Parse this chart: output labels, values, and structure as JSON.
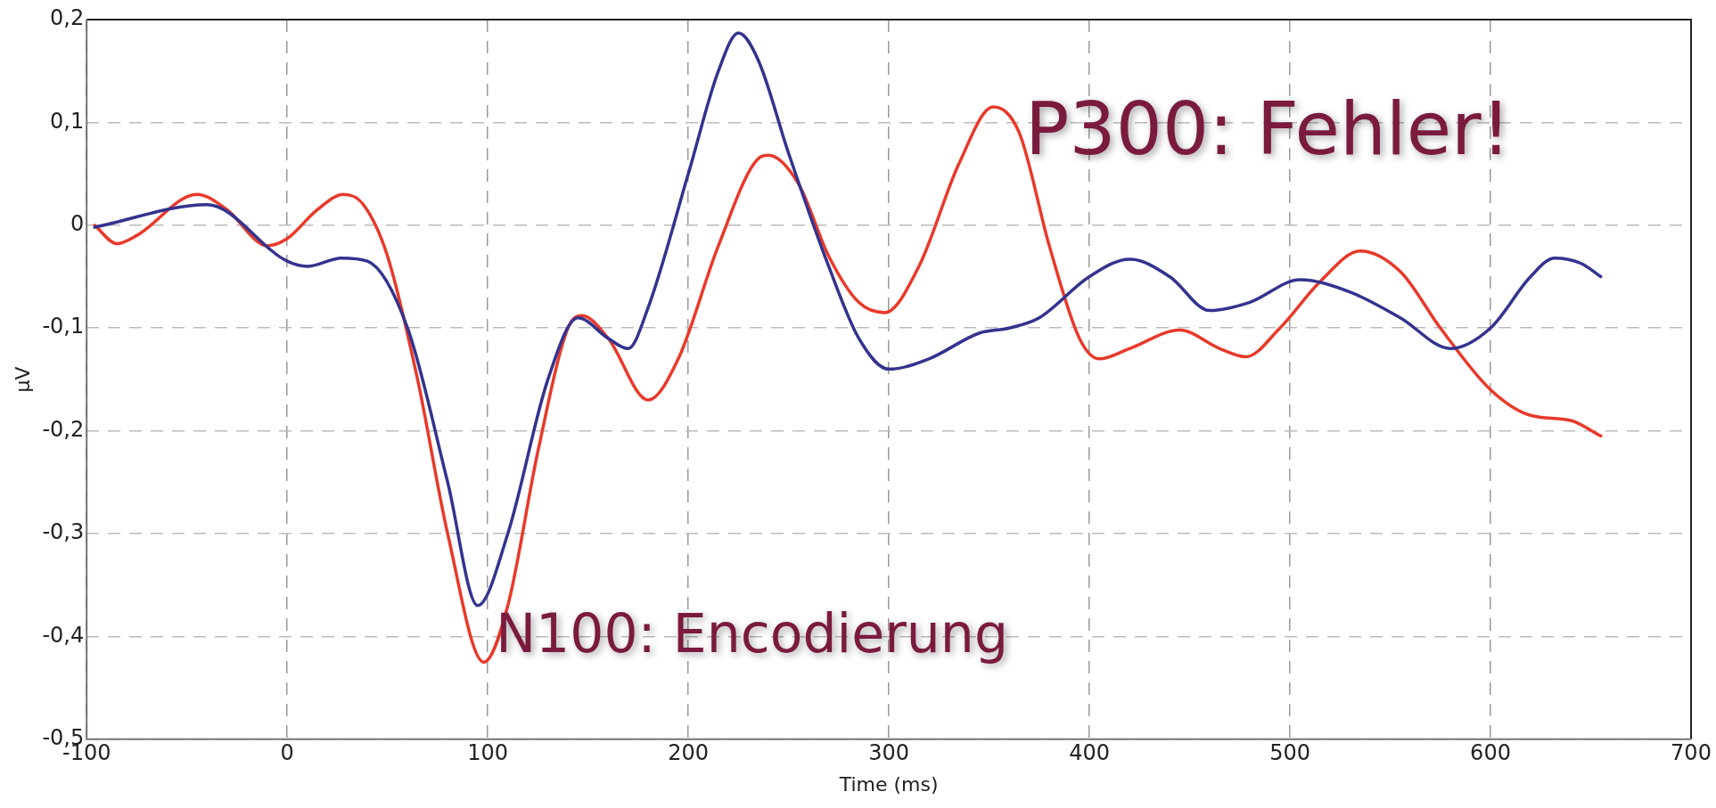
{
  "chart_data": {
    "type": "line",
    "xlabel": "Time (ms)",
    "ylabel": "µV",
    "xlim": [
      -100,
      700
    ],
    "xticks": [
      -100,
      0,
      100,
      200,
      300,
      400,
      500,
      600,
      700
    ],
    "ylim": [
      -0.5,
      0.2
    ],
    "yticks": [
      {
        "value": -0.5,
        "label": "-0,5"
      },
      {
        "value": -0.4,
        "label": "-0,4"
      },
      {
        "value": -0.3,
        "label": "-0,3"
      },
      {
        "value": -0.2,
        "label": "-0,2"
      },
      {
        "value": -0.1,
        "label": "-0,1"
      },
      {
        "value": 0,
        "label": "0"
      },
      {
        "value": 0.1,
        "label": "0,1"
      },
      {
        "value": 0.2,
        "label": "0,2"
      }
    ],
    "grid": true,
    "marker": "none",
    "series": [
      {
        "color": "#33338f",
        "x": [
          -96,
          -40,
          0,
          10,
          27,
          40,
          60,
          80,
          95,
          110,
          130,
          145,
          160,
          170,
          180,
          200,
          215,
          225,
          235,
          250,
          270,
          285,
          300,
          320,
          345,
          360,
          375,
          400,
          420,
          440,
          460,
          480,
          505,
          530,
          555,
          580,
          600,
          620,
          632,
          645,
          655
        ],
        "values": [
          -0.002,
          0.02,
          -0.035,
          -0.04,
          -0.032,
          -0.035,
          -0.1,
          -0.25,
          -0.37,
          -0.3,
          -0.15,
          -0.09,
          -0.11,
          -0.12,
          -0.08,
          0.05,
          0.15,
          0.187,
          0.16,
          0.07,
          -0.04,
          -0.11,
          -0.14,
          -0.13,
          -0.105,
          -0.1,
          -0.09,
          -0.05,
          -0.033,
          -0.05,
          -0.083,
          -0.075,
          -0.053,
          -0.065,
          -0.09,
          -0.12,
          -0.1,
          -0.05,
          -0.032,
          -0.037,
          -0.05
        ]
      },
      {
        "color": "#e8392a",
        "x": [
          -96,
          -85,
          -75,
          -45,
          -30,
          -10,
          0,
          15,
          28,
          38,
          50,
          65,
          80,
          98,
          110,
          125,
          140,
          147,
          160,
          180,
          195,
          215,
          235,
          240,
          255,
          270,
          285,
          298,
          315,
          335,
          352,
          365,
          380,
          395,
          405,
          420,
          445,
          465,
          478,
          495,
          515,
          535,
          555,
          575,
          600,
          620,
          640,
          655
        ],
        "values": [
          0,
          -0.018,
          -0.01,
          0.03,
          0.015,
          -0.02,
          -0.013,
          0.015,
          0.03,
          0.02,
          -0.03,
          -0.15,
          -0.3,
          -0.425,
          -0.37,
          -0.22,
          -0.1,
          -0.088,
          -0.11,
          -0.17,
          -0.13,
          -0.02,
          0.065,
          0.068,
          0.04,
          -0.03,
          -0.075,
          -0.085,
          -0.04,
          0.06,
          0.115,
          0.09,
          -0.02,
          -0.11,
          -0.13,
          -0.12,
          -0.102,
          -0.12,
          -0.128,
          -0.1,
          -0.055,
          -0.025,
          -0.045,
          -0.1,
          -0.16,
          -0.185,
          -0.19,
          -0.205
        ]
      }
    ],
    "annotations": [
      "N100: Encodierung",
      "P300: Fehler!"
    ]
  }
}
